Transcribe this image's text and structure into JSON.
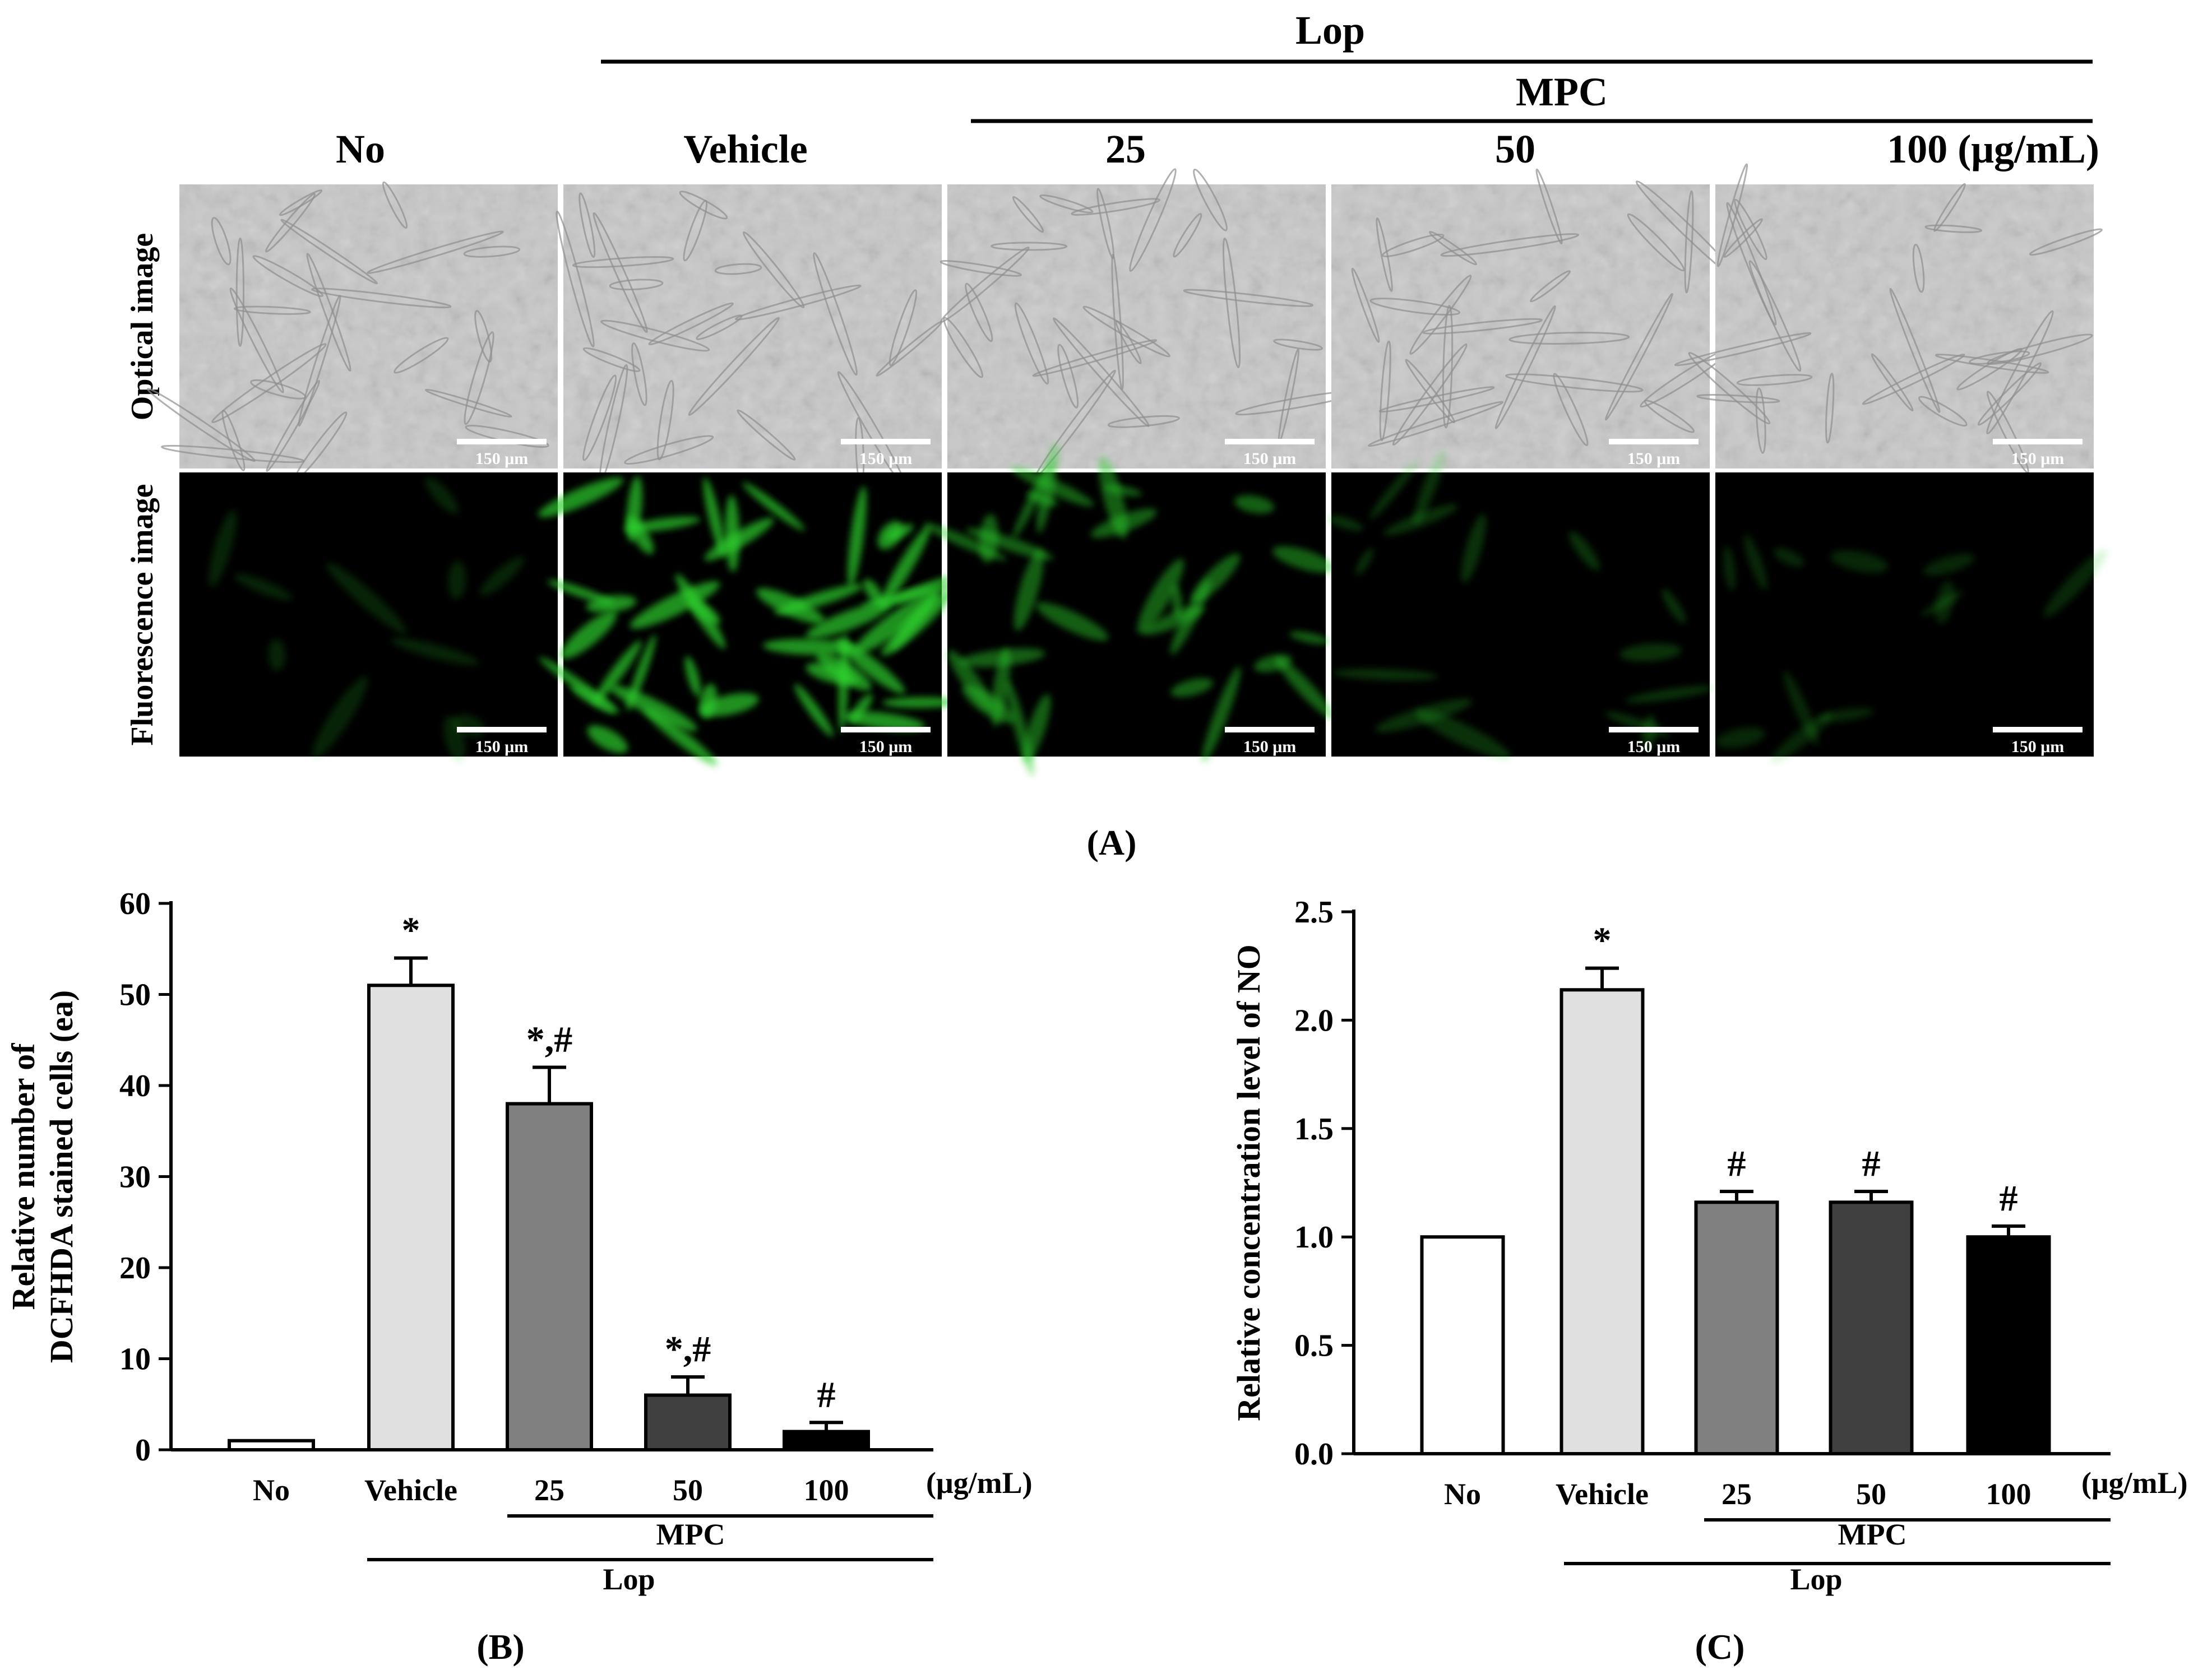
{
  "panel_a": {
    "top_header": "Lop",
    "sub_header": "MPC",
    "columns": [
      "No",
      "Vehicle",
      "25",
      "50",
      "100 (μg/mL)"
    ],
    "row_labels": [
      "Optical image",
      "Fluorescence image"
    ],
    "scale_bar": "150 μm",
    "fluorescence_intensity": [
      0.08,
      0.95,
      0.55,
      0.18,
      0.1
    ],
    "label": "(A)",
    "colors": {
      "optical_bg": "#c8c8c8",
      "fluor_bg": "#000000",
      "fluor_cell": "#2fd12f"
    }
  },
  "chart_data": [
    {
      "type": "bar",
      "categories": [
        "No",
        "Vehicle",
        "25",
        "50",
        "100"
      ],
      "category_suffix": "(μg/mL)",
      "values": [
        1,
        51,
        38,
        6,
        2
      ],
      "errors": [
        0,
        3,
        4,
        2,
        1
      ],
      "annotations": [
        "",
        "*",
        "*,#",
        "*,#",
        "#"
      ],
      "bar_colors": [
        "#ffffff",
        "#e0e0e0",
        "#808080",
        "#404040",
        "#000000"
      ],
      "ylabel": "Relative number of DCFHDA stained cells (ea)",
      "ylabel_lines": [
        "Relative number of",
        "DCFHDA stained cells (ea)"
      ],
      "ylim": [
        0,
        60
      ],
      "yticks": [
        0,
        10,
        20,
        30,
        40,
        50,
        60
      ],
      "ytick_labels": [
        "0",
        "10",
        "20",
        "30",
        "40",
        "50",
        "60"
      ],
      "group_labels": {
        "mpc": "MPC",
        "lop": "Lop"
      },
      "label": "(B)"
    },
    {
      "type": "bar",
      "categories": [
        "No",
        "Vehicle",
        "25",
        "50",
        "100"
      ],
      "category_suffix": "(μg/mL)",
      "values": [
        1.0,
        2.14,
        1.16,
        1.16,
        1.0
      ],
      "errors": [
        0,
        0.1,
        0.05,
        0.05,
        0.05
      ],
      "annotations": [
        "",
        "*",
        "#",
        "#",
        "#"
      ],
      "bar_colors": [
        "#ffffff",
        "#e0e0e0",
        "#808080",
        "#404040",
        "#000000"
      ],
      "ylabel": "Relative concentration level of NO",
      "ylim": [
        0,
        2.5
      ],
      "yticks": [
        0,
        0.5,
        1.0,
        1.5,
        2.0,
        2.5
      ],
      "ytick_labels": [
        "0.0",
        "0.5",
        "1.0",
        "1.5",
        "2.0",
        "2.5"
      ],
      "group_labels": {
        "mpc": "MPC",
        "lop": "Lop"
      },
      "label": "(C)"
    }
  ]
}
